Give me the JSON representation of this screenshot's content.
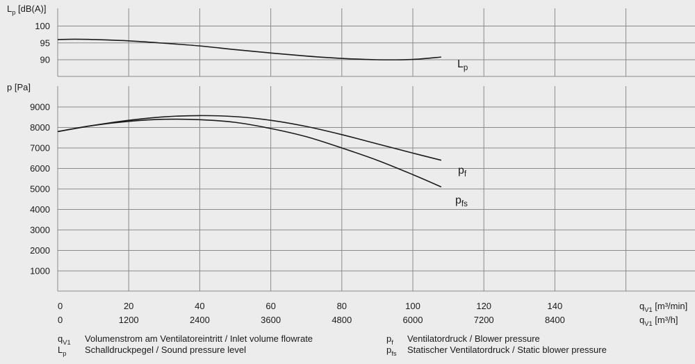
{
  "chart_data": {
    "type": "line",
    "x_axes": [
      {
        "ticks": [
          "0",
          "20",
          "40",
          "60",
          "80",
          "100",
          "120",
          "140"
        ],
        "unit_sym": "q",
        "unit_sub": "V1",
        "unit": " [m³/min]"
      },
      {
        "ticks": [
          "0",
          "1200",
          "2400",
          "3600",
          "4800",
          "6000",
          "7200",
          "8400"
        ],
        "unit_sym": "q",
        "unit_sub": "V1",
        "unit": " [m³/h]"
      }
    ],
    "xlim": [
      0,
      160
    ],
    "panels": [
      {
        "id": "sound",
        "ylabel_sym": "L",
        "ylabel_sub": "p",
        "ylabel_unit": " [dB(A)]",
        "ylim": [
          86,
          101.5
        ],
        "ticks": [
          90,
          95,
          100
        ],
        "series": [
          {
            "name_sym": "L",
            "name_sub": "p",
            "x": [
              0,
              5,
              10,
              20,
              30,
              40,
              50,
              60,
              70,
              80,
              90,
              100,
              108
            ],
            "y": [
              96.0,
              96.1,
              96.0,
              95.6,
              94.9,
              94.1,
              93.0,
              92.0,
              91.1,
              90.4,
              90.0,
              90.1,
              90.8
            ]
          }
        ]
      },
      {
        "id": "pressure",
        "ylabel_sym": "p",
        "ylabel_sub": "",
        "ylabel_unit": " [Pa]",
        "ylim": [
          0,
          10000
        ],
        "ticks": [
          1000,
          2000,
          3000,
          4000,
          5000,
          6000,
          7000,
          8000,
          9000
        ],
        "series": [
          {
            "name_sym": "p",
            "name_sub": "f",
            "x": [
              0,
              10,
              20,
              30,
              40,
              50,
              60,
              70,
              80,
              90,
              100,
              108
            ],
            "y": [
              7800,
              8100,
              8350,
              8520,
              8580,
              8530,
              8350,
              8050,
              7650,
              7200,
              6750,
              6400
            ]
          },
          {
            "name_sym": "p",
            "name_sub": "fs",
            "x": [
              0,
              10,
              20,
              30,
              40,
              50,
              60,
              70,
              80,
              90,
              100,
              108
            ],
            "y": [
              7800,
              8100,
              8300,
              8400,
              8380,
              8250,
              7950,
              7550,
              7000,
              6400,
              5700,
              5100
            ]
          }
        ]
      }
    ],
    "grid": true,
    "legend": {
      "items": [
        {
          "sym": "q",
          "sub": "V1",
          "text": "Volumenstrom am Ventilatoreintritt / Inlet volume flowrate"
        },
        {
          "sym": "L",
          "sub": "p",
          "text": "Schalldruckpegel / Sound pressure level"
        },
        {
          "sym": "p",
          "sub": "f",
          "text": "Ventilatordruck / Blower pressure"
        },
        {
          "sym": "p",
          "sub": "fs",
          "text": "Statischer Ventilatordruck / Static blower pressure"
        }
      ]
    },
    "colors": {
      "background": "#ececec",
      "grid": "#8a8a8a",
      "line": "#1a1a1a"
    }
  }
}
